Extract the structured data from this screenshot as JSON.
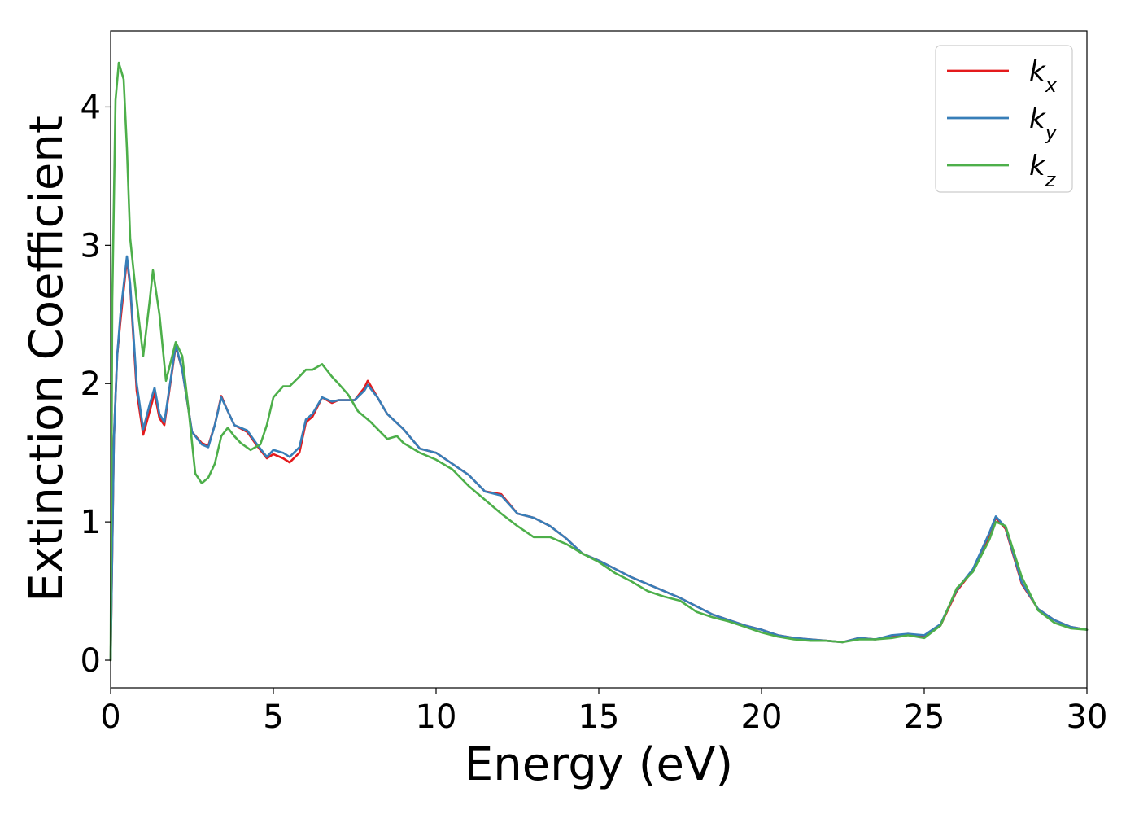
{
  "chart_data": {
    "type": "line",
    "xlabel": "Energy (eV)",
    "ylabel": "Extinction Coefficient",
    "xlim": [
      0,
      30
    ],
    "ylim": [
      -0.2,
      4.55
    ],
    "x_ticks": [
      0,
      5,
      10,
      15,
      20,
      25,
      30
    ],
    "y_ticks": [
      0,
      1,
      2,
      3,
      4
    ],
    "grid": false,
    "legend_position": "top-right",
    "series": [
      {
        "name": "k",
        "subscript": "x",
        "color": "#e41a1c",
        "points": [
          [
            0,
            0
          ],
          [
            0.1,
            1.6
          ],
          [
            0.2,
            2.2
          ],
          [
            0.3,
            2.45
          ],
          [
            0.5,
            2.9
          ],
          [
            0.6,
            2.7
          ],
          [
            0.8,
            1.95
          ],
          [
            1.0,
            1.63
          ],
          [
            1.2,
            1.8
          ],
          [
            1.35,
            1.93
          ],
          [
            1.5,
            1.75
          ],
          [
            1.65,
            1.7
          ],
          [
            2.0,
            2.27
          ],
          [
            2.2,
            2.1
          ],
          [
            2.5,
            1.65
          ],
          [
            2.8,
            1.57
          ],
          [
            3.0,
            1.55
          ],
          [
            3.2,
            1.7
          ],
          [
            3.4,
            1.91
          ],
          [
            3.6,
            1.8
          ],
          [
            3.8,
            1.7
          ],
          [
            4.2,
            1.65
          ],
          [
            4.5,
            1.55
          ],
          [
            4.8,
            1.46
          ],
          [
            5.0,
            1.49
          ],
          [
            5.3,
            1.46
          ],
          [
            5.5,
            1.43
          ],
          [
            5.8,
            1.5
          ],
          [
            6.0,
            1.72
          ],
          [
            6.2,
            1.76
          ],
          [
            6.5,
            1.9
          ],
          [
            6.8,
            1.86
          ],
          [
            7.0,
            1.88
          ],
          [
            7.5,
            1.88
          ],
          [
            7.8,
            1.97
          ],
          [
            7.9,
            2.02
          ],
          [
            8.2,
            1.9
          ],
          [
            8.5,
            1.78
          ],
          [
            9.0,
            1.67
          ],
          [
            9.5,
            1.53
          ],
          [
            10.0,
            1.5
          ],
          [
            10.5,
            1.42
          ],
          [
            11.0,
            1.34
          ],
          [
            11.5,
            1.22
          ],
          [
            12.0,
            1.2
          ],
          [
            12.5,
            1.06
          ],
          [
            13.0,
            1.03
          ],
          [
            13.5,
            0.97
          ],
          [
            14.0,
            0.88
          ],
          [
            14.5,
            0.77
          ],
          [
            15.0,
            0.72
          ],
          [
            15.5,
            0.66
          ],
          [
            16.0,
            0.6
          ],
          [
            16.5,
            0.55
          ],
          [
            17.0,
            0.5
          ],
          [
            17.5,
            0.45
          ],
          [
            18.0,
            0.39
          ],
          [
            18.5,
            0.33
          ],
          [
            19.0,
            0.29
          ],
          [
            19.5,
            0.25
          ],
          [
            20.0,
            0.22
          ],
          [
            20.5,
            0.18
          ],
          [
            21.0,
            0.16
          ],
          [
            21.5,
            0.15
          ],
          [
            22.0,
            0.14
          ],
          [
            22.5,
            0.13
          ],
          [
            23.0,
            0.16
          ],
          [
            23.5,
            0.15
          ],
          [
            24.0,
            0.17
          ],
          [
            24.5,
            0.19
          ],
          [
            25.0,
            0.17
          ],
          [
            25.5,
            0.25
          ],
          [
            26.0,
            0.5
          ],
          [
            26.5,
            0.65
          ],
          [
            27.0,
            0.9
          ],
          [
            27.2,
            1.03
          ],
          [
            27.5,
            0.95
          ],
          [
            28.0,
            0.55
          ],
          [
            28.5,
            0.37
          ],
          [
            29.0,
            0.29
          ],
          [
            29.5,
            0.24
          ],
          [
            30.0,
            0.22
          ]
        ]
      },
      {
        "name": "k",
        "subscript": "y",
        "color": "#377eb8",
        "points": [
          [
            0,
            0
          ],
          [
            0.1,
            1.6
          ],
          [
            0.2,
            2.2
          ],
          [
            0.3,
            2.5
          ],
          [
            0.5,
            2.92
          ],
          [
            0.6,
            2.72
          ],
          [
            0.8,
            2.0
          ],
          [
            1.0,
            1.67
          ],
          [
            1.2,
            1.85
          ],
          [
            1.35,
            1.97
          ],
          [
            1.5,
            1.78
          ],
          [
            1.65,
            1.72
          ],
          [
            2.0,
            2.28
          ],
          [
            2.2,
            2.1
          ],
          [
            2.5,
            1.65
          ],
          [
            2.8,
            1.56
          ],
          [
            3.0,
            1.54
          ],
          [
            3.2,
            1.7
          ],
          [
            3.4,
            1.9
          ],
          [
            3.6,
            1.8
          ],
          [
            3.8,
            1.7
          ],
          [
            4.2,
            1.66
          ],
          [
            4.5,
            1.56
          ],
          [
            4.8,
            1.47
          ],
          [
            5.0,
            1.52
          ],
          [
            5.3,
            1.5
          ],
          [
            5.5,
            1.47
          ],
          [
            5.8,
            1.54
          ],
          [
            6.0,
            1.74
          ],
          [
            6.2,
            1.78
          ],
          [
            6.5,
            1.9
          ],
          [
            6.8,
            1.87
          ],
          [
            7.0,
            1.88
          ],
          [
            7.5,
            1.88
          ],
          [
            7.8,
            1.95
          ],
          [
            7.9,
            1.99
          ],
          [
            8.2,
            1.9
          ],
          [
            8.5,
            1.78
          ],
          [
            9.0,
            1.67
          ],
          [
            9.5,
            1.53
          ],
          [
            10.0,
            1.5
          ],
          [
            10.5,
            1.42
          ],
          [
            11.0,
            1.34
          ],
          [
            11.5,
            1.22
          ],
          [
            12.0,
            1.19
          ],
          [
            12.5,
            1.06
          ],
          [
            13.0,
            1.03
          ],
          [
            13.5,
            0.97
          ],
          [
            14.0,
            0.88
          ],
          [
            14.5,
            0.77
          ],
          [
            15.0,
            0.72
          ],
          [
            15.5,
            0.66
          ],
          [
            16.0,
            0.6
          ],
          [
            16.5,
            0.55
          ],
          [
            17.0,
            0.5
          ],
          [
            17.5,
            0.45
          ],
          [
            18.0,
            0.39
          ],
          [
            18.5,
            0.33
          ],
          [
            19.0,
            0.29
          ],
          [
            19.5,
            0.25
          ],
          [
            20.0,
            0.22
          ],
          [
            20.5,
            0.18
          ],
          [
            21.0,
            0.16
          ],
          [
            21.5,
            0.15
          ],
          [
            22.0,
            0.14
          ],
          [
            22.5,
            0.13
          ],
          [
            23.0,
            0.16
          ],
          [
            23.5,
            0.15
          ],
          [
            24.0,
            0.18
          ],
          [
            24.5,
            0.19
          ],
          [
            25.0,
            0.18
          ],
          [
            25.5,
            0.26
          ],
          [
            26.0,
            0.51
          ],
          [
            26.5,
            0.66
          ],
          [
            27.0,
            0.92
          ],
          [
            27.2,
            1.04
          ],
          [
            27.5,
            0.96
          ],
          [
            28.0,
            0.56
          ],
          [
            28.5,
            0.37
          ],
          [
            29.0,
            0.29
          ],
          [
            29.5,
            0.24
          ],
          [
            30.0,
            0.22
          ]
        ]
      },
      {
        "name": "k",
        "subscript": "z",
        "color": "#4daf4a",
        "points": [
          [
            0,
            0
          ],
          [
            0.05,
            2.6
          ],
          [
            0.15,
            4.05
          ],
          [
            0.25,
            4.32
          ],
          [
            0.4,
            4.2
          ],
          [
            0.5,
            3.7
          ],
          [
            0.6,
            3.05
          ],
          [
            0.8,
            2.6
          ],
          [
            1.0,
            2.2
          ],
          [
            1.2,
            2.6
          ],
          [
            1.3,
            2.82
          ],
          [
            1.5,
            2.5
          ],
          [
            1.7,
            2.02
          ],
          [
            2.0,
            2.3
          ],
          [
            2.2,
            2.2
          ],
          [
            2.4,
            1.8
          ],
          [
            2.6,
            1.35
          ],
          [
            2.8,
            1.28
          ],
          [
            3.0,
            1.32
          ],
          [
            3.2,
            1.42
          ],
          [
            3.4,
            1.62
          ],
          [
            3.6,
            1.68
          ],
          [
            3.8,
            1.62
          ],
          [
            4.0,
            1.57
          ],
          [
            4.3,
            1.52
          ],
          [
            4.6,
            1.56
          ],
          [
            4.8,
            1.7
          ],
          [
            5.0,
            1.9
          ],
          [
            5.3,
            1.98
          ],
          [
            5.5,
            1.98
          ],
          [
            5.8,
            2.05
          ],
          [
            6.0,
            2.1
          ],
          [
            6.2,
            2.1
          ],
          [
            6.5,
            2.14
          ],
          [
            6.8,
            2.05
          ],
          [
            7.0,
            2.0
          ],
          [
            7.3,
            1.92
          ],
          [
            7.6,
            1.8
          ],
          [
            8.0,
            1.72
          ],
          [
            8.5,
            1.6
          ],
          [
            8.8,
            1.62
          ],
          [
            9.0,
            1.57
          ],
          [
            9.5,
            1.5
          ],
          [
            10.0,
            1.45
          ],
          [
            10.5,
            1.38
          ],
          [
            11.0,
            1.26
          ],
          [
            11.5,
            1.16
          ],
          [
            12.0,
            1.06
          ],
          [
            12.5,
            0.97
          ],
          [
            13.0,
            0.89
          ],
          [
            13.5,
            0.89
          ],
          [
            14.0,
            0.84
          ],
          [
            14.5,
            0.77
          ],
          [
            15.0,
            0.71
          ],
          [
            15.5,
            0.63
          ],
          [
            16.0,
            0.57
          ],
          [
            16.5,
            0.5
          ],
          [
            17.0,
            0.46
          ],
          [
            17.5,
            0.43
          ],
          [
            18.0,
            0.35
          ],
          [
            18.5,
            0.31
          ],
          [
            19.0,
            0.28
          ],
          [
            19.5,
            0.24
          ],
          [
            20.0,
            0.2
          ],
          [
            20.5,
            0.17
          ],
          [
            21.0,
            0.15
          ],
          [
            21.5,
            0.14
          ],
          [
            22.0,
            0.14
          ],
          [
            22.5,
            0.13
          ],
          [
            23.0,
            0.15
          ],
          [
            23.5,
            0.15
          ],
          [
            24.0,
            0.16
          ],
          [
            24.5,
            0.18
          ],
          [
            25.0,
            0.16
          ],
          [
            25.5,
            0.25
          ],
          [
            26.0,
            0.52
          ],
          [
            26.5,
            0.64
          ],
          [
            27.0,
            0.87
          ],
          [
            27.2,
            1.0
          ],
          [
            27.5,
            0.97
          ],
          [
            28.0,
            0.6
          ],
          [
            28.5,
            0.36
          ],
          [
            29.0,
            0.27
          ],
          [
            29.5,
            0.23
          ],
          [
            30.0,
            0.22
          ]
        ]
      }
    ]
  }
}
